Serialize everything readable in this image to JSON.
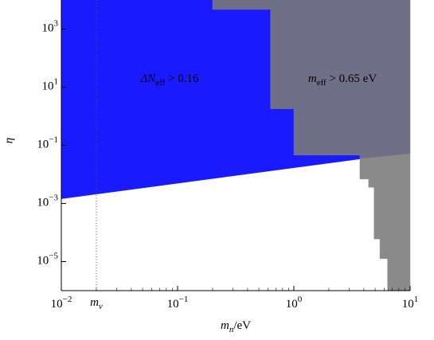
{
  "chart_data": {
    "type": "region",
    "x_label": {
      "parts": [
        "m",
        "n",
        "/eV"
      ]
    },
    "y_label": "η",
    "xscale": "log",
    "yscale": "log",
    "xlim": [
      0.01,
      10
    ],
    "ylim": [
      1e-06,
      10000
    ],
    "xticks": [
      {
        "value": 0.01,
        "label": "10",
        "exponent": "−2"
      },
      {
        "value": 0.1,
        "label": "10",
        "exponent": "−1"
      },
      {
        "value": 1,
        "label": "10",
        "exponent": "0"
      },
      {
        "value": 10,
        "label": "10",
        "exponent": "1"
      }
    ],
    "yticks": [
      {
        "value": 1e-05,
        "label": "10",
        "exponent": "−5"
      },
      {
        "value": 0.001,
        "label": "10",
        "exponent": "−3"
      },
      {
        "value": 0.1,
        "label": "10",
        "exponent": "−1"
      },
      {
        "value": 10,
        "label": "10",
        "exponent": "1"
      },
      {
        "value": 1000,
        "label": "10",
        "exponent": "3"
      }
    ],
    "regions": [
      {
        "color": "#1a1aff",
        "x": [
          0.01,
          0.01,
          0.2,
          0.2,
          0.63,
          0.63,
          1.0,
          1.0,
          3.7,
          3.7
        ],
        "y": [
          0.00145,
          10000,
          10000,
          4700,
          4700,
          1.8,
          1.8,
          0.046,
          0.046,
          0.034
        ]
      },
      {
        "color": "#6f7088",
        "x": [
          0.2,
          10,
          10,
          3.7,
          3.7,
          1.0,
          1.0,
          0.63,
          0.63,
          0.2
        ],
        "y": [
          10000,
          10000,
          0.051,
          0.034,
          0.046,
          0.046,
          1.8,
          1.8,
          4700,
          4700
        ]
      },
      {
        "color": "#8a8a8a",
        "x": [
          3.7,
          10,
          10,
          6.4,
          6.4,
          5.5,
          5.5,
          4.9,
          4.9,
          4.4,
          4.4,
          3.7
        ],
        "y": [
          0.034,
          0.051,
          1e-06,
          1e-06,
          1.26e-05,
          1.26e-05,
          6e-05,
          6e-05,
          0.0036,
          0.0036,
          0.0069,
          0.0069
        ]
      }
    ],
    "vline": {
      "x": 0.02,
      "label": {
        "parts": [
          "m",
          "ν"
        ]
      }
    },
    "annotations": [
      {
        "parts": [
          "ΔN",
          "eff",
          " > 0.16"
        ]
      },
      {
        "parts": [
          "m",
          "eff",
          " > 0.65 eV"
        ]
      }
    ]
  }
}
